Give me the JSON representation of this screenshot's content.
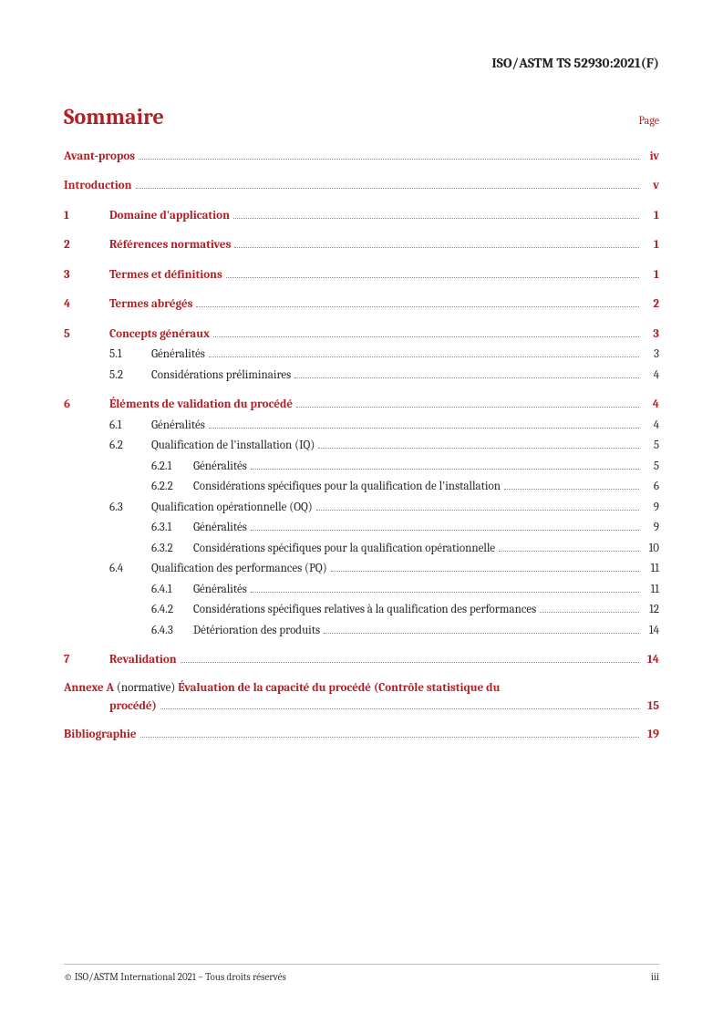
{
  "header": {
    "doc_id": "ISO/ASTM TS 52930:2021(F)"
  },
  "title": "Sommaire",
  "page_label": "Page",
  "toc": {
    "avant_propos": {
      "label": "Avant-propos",
      "page": "iv"
    },
    "introduction": {
      "label": "Introduction",
      "page": "v"
    },
    "s1": {
      "num": "1",
      "label": "Domaine d'application",
      "page": "1"
    },
    "s2": {
      "num": "2",
      "label": "Références normatives",
      "page": "1"
    },
    "s3": {
      "num": "3",
      "label": "Termes et définitions",
      "page": "1"
    },
    "s4": {
      "num": "4",
      "label": "Termes abrégés",
      "page": "2"
    },
    "s5": {
      "num": "5",
      "label": "Concepts généraux",
      "page": "3",
      "s5_1": {
        "num": "5.1",
        "label": "Généralités",
        "page": "3"
      },
      "s5_2": {
        "num": "5.2",
        "label": "Considérations préliminaires",
        "page": "4"
      }
    },
    "s6": {
      "num": "6",
      "label": "Éléments de validation du procédé",
      "page": "4",
      "s6_1": {
        "num": "6.1",
        "label": "Généralités",
        "page": "4"
      },
      "s6_2": {
        "num": "6.2",
        "label": "Qualification de l'installation (IQ)",
        "page": "5",
        "s6_2_1": {
          "num": "6.2.1",
          "label": "Généralités",
          "page": "5"
        },
        "s6_2_2": {
          "num": "6.2.2",
          "label": "Considérations spécifiques pour la qualification de l'installation",
          "page": "6"
        }
      },
      "s6_3": {
        "num": "6.3",
        "label": "Qualification opérationnelle (OQ)",
        "page": "9",
        "s6_3_1": {
          "num": "6.3.1",
          "label": "Généralités",
          "page": "9"
        },
        "s6_3_2": {
          "num": "6.3.2",
          "label": "Considérations spécifiques pour la qualification opérationnelle",
          "page": "10"
        }
      },
      "s6_4": {
        "num": "6.4",
        "label": "Qualification des performances (PQ)",
        "page": "11",
        "s6_4_1": {
          "num": "6.4.1",
          "label": "Généralités",
          "page": "11"
        },
        "s6_4_2": {
          "num": "6.4.2",
          "label": "Considérations spécifiques relatives à la qualification des performances",
          "page": "12"
        },
        "s6_4_3": {
          "num": "6.4.3",
          "label": "Détérioration des produits",
          "page": "14"
        }
      }
    },
    "s7": {
      "num": "7",
      "label": "Revalidation",
      "page": "14"
    },
    "annexA": {
      "prefix": "Annexe A",
      "paren": "(normative)",
      "title_line1": "Évaluation de la capacité du procédé (Contrôle statistique du",
      "title_line2": "procédé)",
      "page": "15"
    },
    "biblio": {
      "label": "Bibliographie",
      "page": "19"
    }
  },
  "footer": {
    "copyright": "© ISO/ASTM International 2021 – Tous droits réservés",
    "pagenum": "iii"
  },
  "colors": {
    "accent": "#b11f24",
    "text": "#2a2a2a",
    "leader": "#888888",
    "background": "#ffffff"
  },
  "typography": {
    "title_fontsize_pt": 18,
    "body_fontsize_pt": 10,
    "footer_fontsize_pt": 8,
    "font_family": "Cambria, Georgia, serif"
  }
}
